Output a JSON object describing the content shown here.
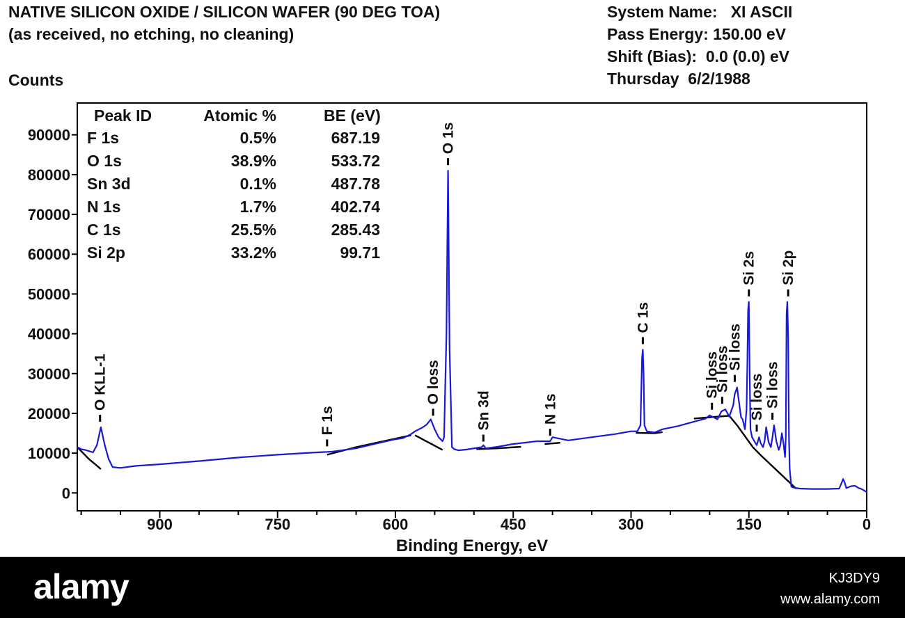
{
  "header": {
    "title_line1": "NATIVE SILICON OXIDE / SILICON WAFER (90 DEG TOA)",
    "title_line2": "(as received, no etching, no cleaning)",
    "y_unit": "Counts",
    "system_name": "System Name:   XI ASCII",
    "pass_energy": "Pass Energy: 150.00 eV",
    "shift_bias": "Shift (Bias):  0.0 (0.0) eV",
    "date": "Thursday  6/2/1988"
  },
  "chart_data": {
    "type": "line",
    "title": "NATIVE SILICON OXIDE / SILICON WAFER (90 DEG TOA)",
    "subtitle": "(as received, no etching, no cleaning)",
    "xlabel": "Binding Energy, eV",
    "ylabel": "Counts",
    "x_reversed": true,
    "xlim": [
      1005,
      0
    ],
    "ylim": [
      -4500,
      98000
    ],
    "x_ticks": [
      900,
      750,
      600,
      450,
      300,
      150,
      0
    ],
    "y_ticks": [
      0,
      10000,
      20000,
      30000,
      40000,
      50000,
      60000,
      70000,
      80000,
      90000
    ],
    "grid": false,
    "colors": {
      "spectrum": "#1a1ad6",
      "background": "#000000",
      "axes": "#000000"
    },
    "peak_table": {
      "headers": [
        "Peak ID",
        "Atomic %",
        "BE (eV)"
      ],
      "rows": [
        [
          "F 1s",
          "0.5%",
          "687.19"
        ],
        [
          "O 1s",
          "38.9%",
          "533.72"
        ],
        [
          "Sn 3d",
          "0.1%",
          "487.78"
        ],
        [
          "N 1s",
          "1.7%",
          "402.74"
        ],
        [
          "C 1s",
          "25.5%",
          "285.43"
        ],
        [
          "Si 2p",
          "33.2%",
          "99.71"
        ]
      ]
    },
    "series": [
      {
        "x": [
          1005,
          1000,
          995,
          990,
          985,
          980,
          975,
          970,
          965,
          960,
          950,
          930,
          900,
          850,
          800,
          750,
          700,
          687,
          680,
          650,
          620,
          600,
          590,
          580,
          575,
          570,
          565,
          560,
          555,
          550,
          545,
          540,
          538,
          535,
          533,
          531,
          528,
          525,
          520,
          510,
          490,
          488,
          485,
          470,
          450,
          420,
          403,
          400,
          380,
          350,
          320,
          300,
          292,
          288,
          286,
          285,
          284,
          283,
          280,
          270,
          260,
          240,
          220,
          205,
          200,
          195,
          190,
          185,
          180,
          175,
          170,
          168,
          165,
          162,
          160,
          158,
          155,
          153,
          152,
          151,
          150,
          149,
          148,
          146,
          143,
          140,
          137,
          135,
          132,
          130,
          128,
          125,
          122,
          120,
          118,
          115,
          112,
          110,
          108,
          106,
          104,
          103,
          102,
          101,
          100,
          99,
          98,
          96,
          94,
          92,
          90,
          85,
          70,
          50,
          35,
          32,
          30,
          28,
          26,
          20,
          15,
          10,
          8,
          5,
          0
        ],
        "y": [
          11500,
          11000,
          10800,
          10500,
          10200,
          12000,
          16500,
          12000,
          8500,
          6500,
          6300,
          6800,
          7200,
          8000,
          8900,
          9600,
          10200,
          10300,
          10400,
          11200,
          12600,
          13500,
          13800,
          14800,
          15500,
          16000,
          16500,
          17200,
          18500,
          16000,
          14000,
          13000,
          14000,
          40000,
          81000,
          36000,
          11500,
          11000,
          10700,
          10900,
          11500,
          12000,
          11200,
          11600,
          12300,
          13000,
          13000,
          14000,
          13200,
          14000,
          14800,
          15500,
          15500,
          17000,
          34000,
          36000,
          30000,
          17000,
          15500,
          15200,
          16000,
          16800,
          17900,
          18700,
          19500,
          19000,
          18500,
          20500,
          21000,
          19200,
          22000,
          24800,
          26500,
          22000,
          19000,
          18500,
          16000,
          21000,
          32000,
          46000,
          48000,
          30000,
          16000,
          14000,
          13000,
          12000,
          14000,
          12500,
          11500,
          13000,
          16500,
          12800,
          11500,
          14000,
          17000,
          13000,
          10800,
          12000,
          15000,
          12500,
          9000,
          14000,
          45000,
          48000,
          39000,
          14000,
          6000,
          1600,
          1400,
          1300,
          1200,
          1100,
          1000,
          1000,
          1100,
          2500,
          3500,
          2600,
          1200,
          1700,
          1800,
          1200,
          1100,
          800,
          200
        ]
      }
    ],
    "backgrounds": [
      {
        "x": [
          1005,
          990,
          975
        ],
        "y": [
          11500,
          8500,
          6000
        ]
      },
      {
        "x": [
          575,
          540
        ],
        "y": [
          14500,
          10800
        ]
      },
      {
        "x": [
          687,
          650,
          580
        ],
        "y": [
          9600,
          11500,
          14500
        ]
      },
      {
        "x": [
          497,
          470,
          440
        ],
        "y": [
          11000,
          11200,
          11600
        ]
      },
      {
        "x": [
          410,
          390
        ],
        "y": [
          12300,
          12600
        ]
      },
      {
        "x": [
          294,
          270,
          260
        ],
        "y": [
          15100,
          15000,
          15300
        ]
      },
      {
        "x": [
          220,
          175,
          165,
          145,
          135,
          90
        ],
        "y": [
          18700,
          19400,
          17000,
          11500,
          9500,
          1100
        ]
      }
    ],
    "peak_labels": [
      {
        "label": "O KLL-1",
        "x": 976,
        "y": 16500
      },
      {
        "label": "F 1s",
        "x": 687,
        "y": 10300
      },
      {
        "label": "O loss",
        "x": 552,
        "y": 18000
      },
      {
        "label": "O 1s",
        "x": 533,
        "y": 81000
      },
      {
        "label": "Sn 3d",
        "x": 488,
        "y": 11500
      },
      {
        "label": "N 1s",
        "x": 403,
        "y": 13000
      },
      {
        "label": "C 1s",
        "x": 285,
        "y": 36000
      },
      {
        "label": "Si loss",
        "x": 197,
        "y": 19500
      },
      {
        "label": "Si loss",
        "x": 184,
        "y": 21000
      },
      {
        "label": "Si loss",
        "x": 168,
        "y": 26500
      },
      {
        "label": "Si 2s",
        "x": 150,
        "y": 48000
      },
      {
        "label": "Si loss",
        "x": 140,
        "y": 14000
      },
      {
        "label": "Si loss",
        "x": 120,
        "y": 17000
      },
      {
        "label": "Si 2p",
        "x": 100,
        "y": 48000
      }
    ]
  },
  "footer": {
    "brand": "alamy",
    "image_id": "KJ3DY9",
    "site": "www.alamy.com"
  }
}
